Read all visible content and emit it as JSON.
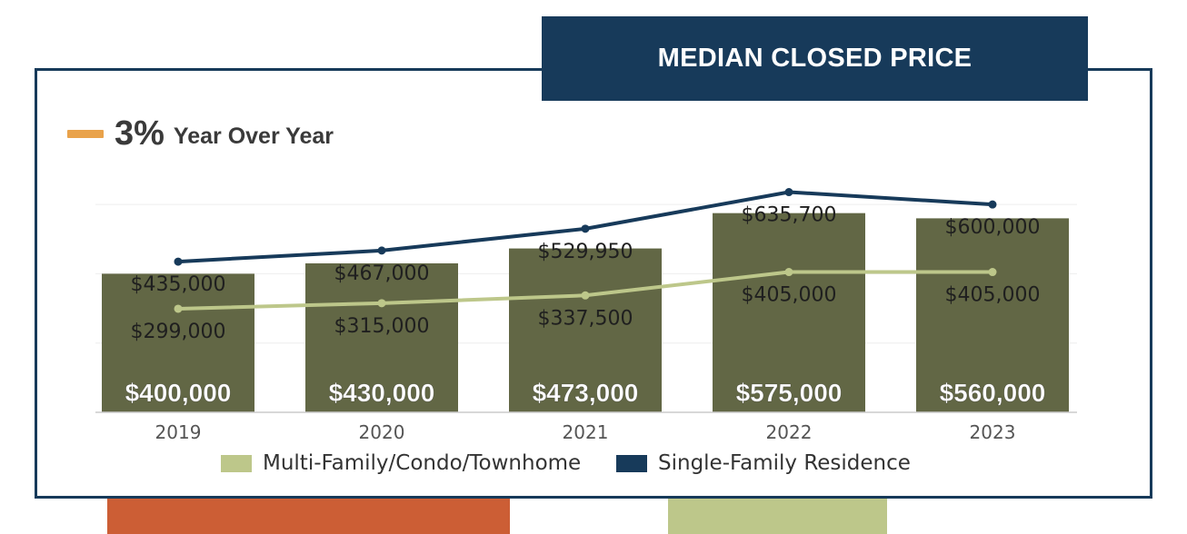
{
  "title": "MEDIAN CLOSED PRICE",
  "yoy": {
    "value": "3%",
    "label": "Year Over Year",
    "color": "#e9a24a"
  },
  "colors": {
    "frame": "#173a5a",
    "bar": "#626745",
    "single_family": "#173a5a",
    "multi_family": "#bdc78a",
    "orange_block": "#cc5e35",
    "green_block": "#bdc78a"
  },
  "chart_data": {
    "type": "bar",
    "categories": [
      "2019",
      "2020",
      "2021",
      "2022",
      "2023"
    ],
    "ylim": [
      0,
      700000
    ],
    "grid": true,
    "legend_position": "bottom",
    "series": [
      {
        "type": "bar",
        "values": [
          400000,
          430000,
          473000,
          575000,
          560000
        ],
        "labels": [
          "$400,000",
          "$430,000",
          "$473,000",
          "$575,000",
          "$560,000"
        ]
      },
      {
        "type": "line",
        "name": "Multi-Family/Condo/Townhome",
        "values": [
          299000,
          315000,
          337500,
          405000,
          405000
        ],
        "labels": [
          "$299,000",
          "$315,000",
          "$337,500",
          "$405,000",
          "$405,000"
        ]
      },
      {
        "type": "line",
        "name": "Single-Family Residence",
        "values": [
          435000,
          467000,
          529950,
          635700,
          600000
        ],
        "labels": [
          "$435,000",
          "$467,000",
          "$529,950",
          "$635,700",
          "$600,000"
        ]
      }
    ]
  }
}
